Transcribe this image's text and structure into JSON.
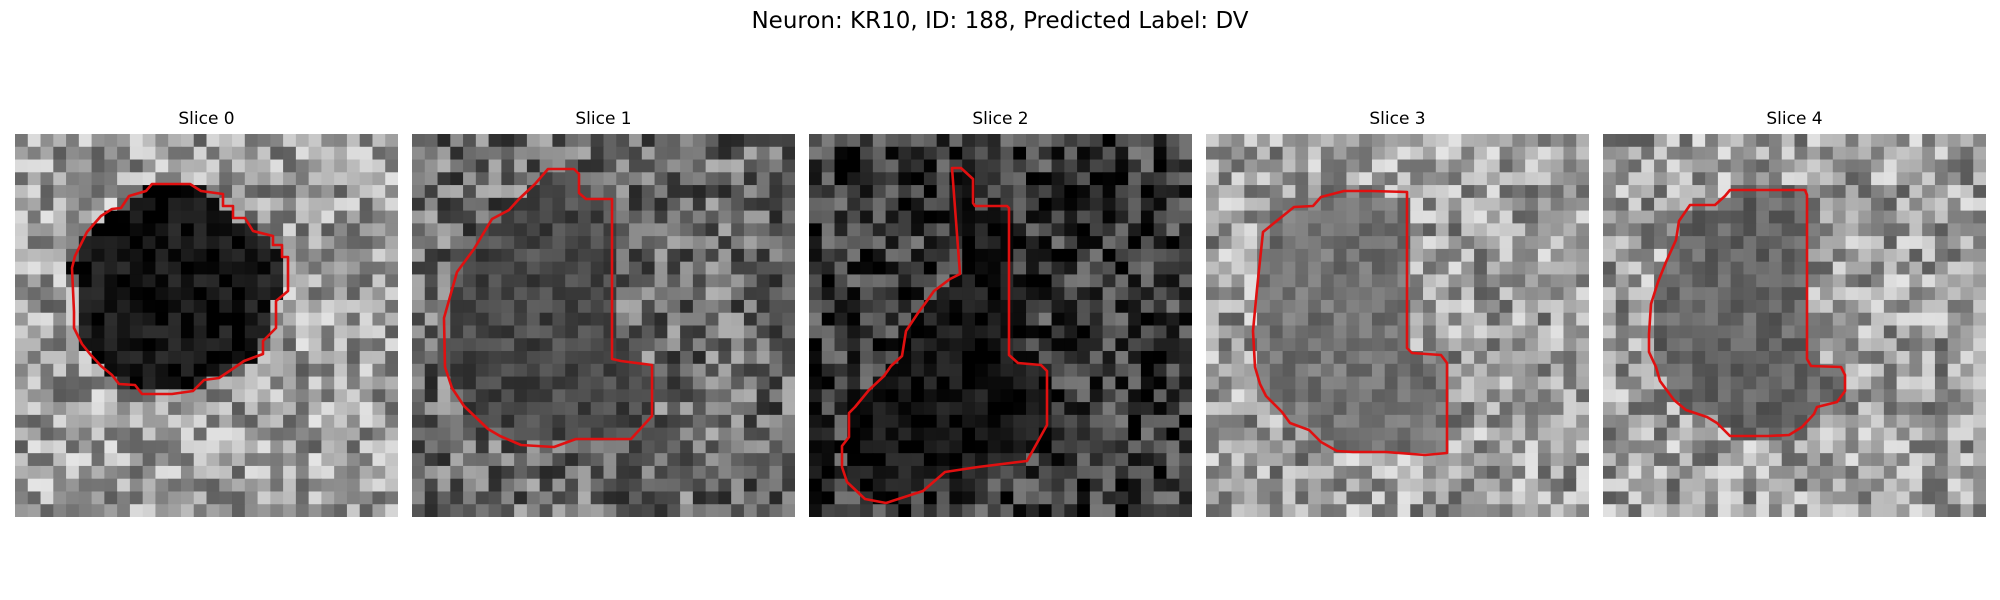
{
  "figure": {
    "title": "Neuron: KR10, ID: 188, Predicted Label: DV"
  },
  "contour_color": "#e01010",
  "panels": [
    {
      "title": "Slice 0",
      "background": "light",
      "center_intensity": 0.08
    },
    {
      "title": "Slice 1",
      "background": "medium",
      "center_intensity": 0.28
    },
    {
      "title": "Slice 2",
      "background": "dark",
      "center_intensity": 0.08
    },
    {
      "title": "Slice 3",
      "background": "light",
      "center_intensity": 0.45
    },
    {
      "title": "Slice 4",
      "background": "light",
      "center_intensity": 0.4
    }
  ]
}
